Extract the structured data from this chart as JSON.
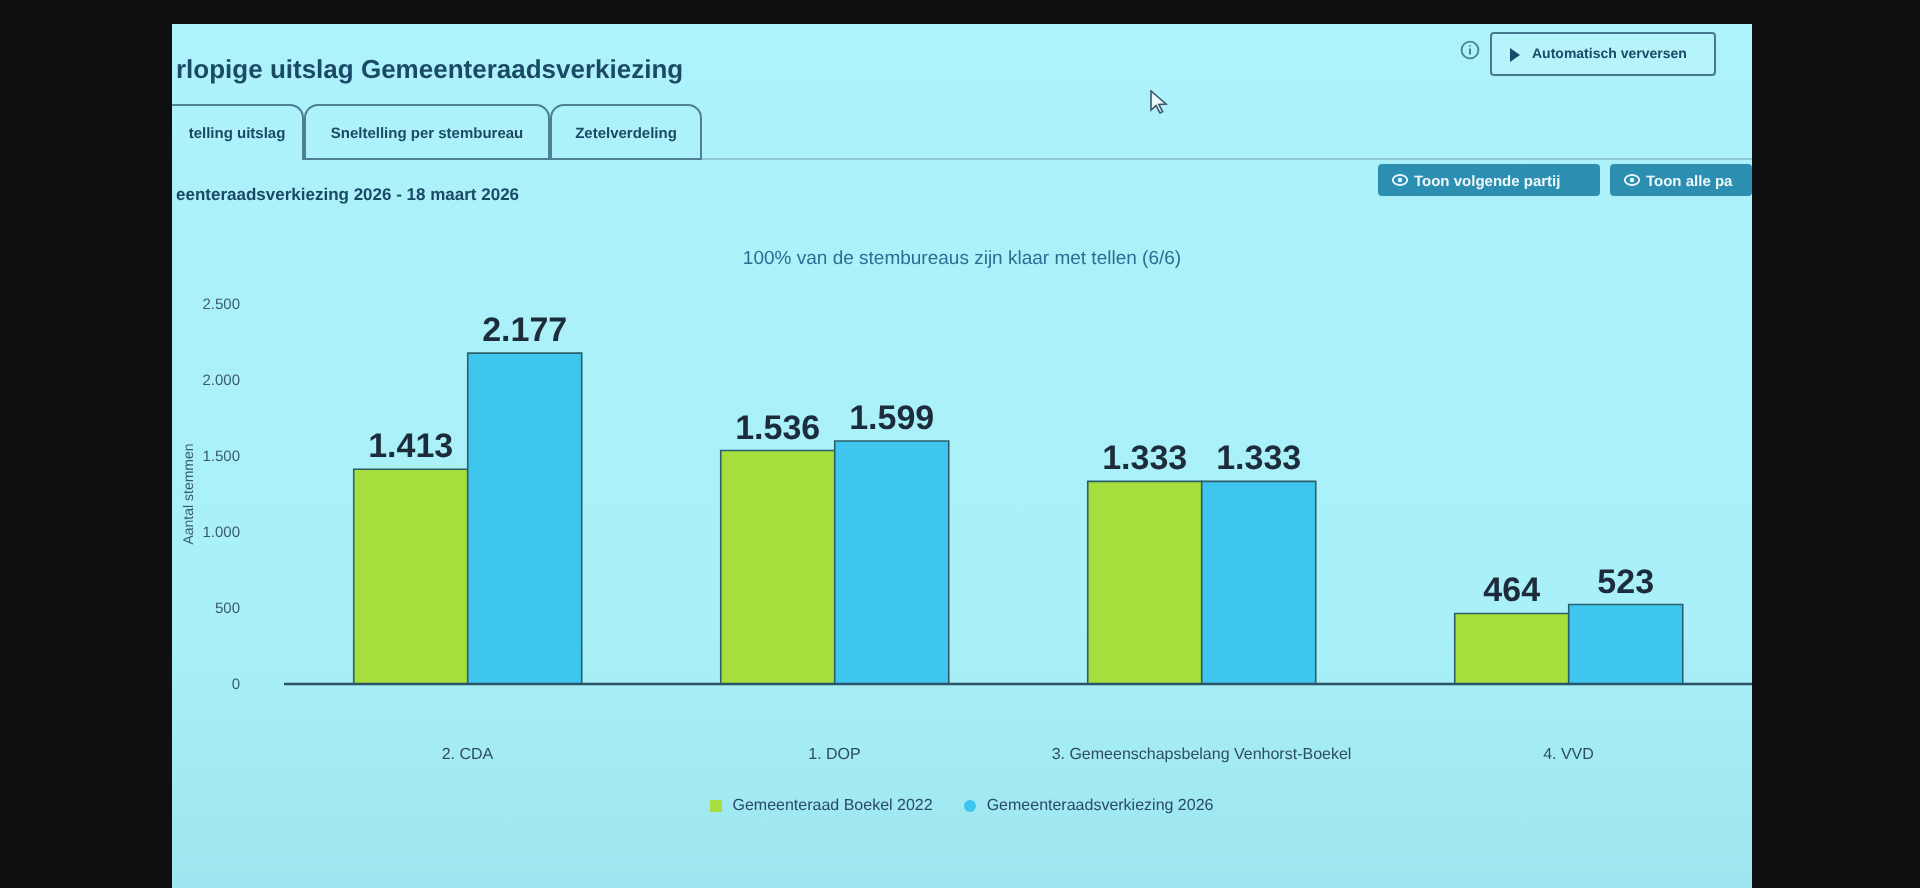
{
  "chart_data": {
    "type": "bar",
    "title": "rlopige uitslag Gemeenteraadsverkiezing",
    "subtitle": "100% van de stembureaus zijn klaar met tellen (6/6)",
    "ylabel": "Aantal stemmen",
    "annotations": [
      "eenteraadsverkiezing 2026 - 18 maart 2026",
      "telling uitslag",
      "Sneltelling per stembureau",
      "Zetelverdeling",
      "Automatisch verversen",
      "Toon volgende partij",
      "Toon alle pa"
    ],
    "categories": [
      "2. CDA",
      "1. DOP",
      "3. Gemeenschapsbelang Venhorst-Boekel",
      "4. VVD"
    ],
    "series": [
      {
        "name": "Gemeenteraad Boekel 2022",
        "color": "#a6de3e",
        "values": [
          1413,
          1536,
          1333,
          464
        ],
        "value_labels": [
          "1.413",
          "1.536",
          "1.333",
          "464"
        ]
      },
      {
        "name": "Gemeenteraadsverkiezing 2026",
        "color": "#3ec6ef",
        "values": [
          2177,
          1599,
          1333,
          523
        ],
        "value_labels": [
          "2.177",
          "1.599",
          "1.333",
          "523"
        ]
      }
    ],
    "ylim": [
      0,
      2500
    ],
    "yticks": [
      0,
      500,
      {
        "value": 1000,
        "label": "1.000"
      },
      {
        "value": 1500,
        "label": "1.500"
      },
      {
        "value": 2000,
        "label": "2.000"
      },
      {
        "value": 2500,
        "label": "2.500"
      }
    ],
    "legend": "bottom"
  }
}
